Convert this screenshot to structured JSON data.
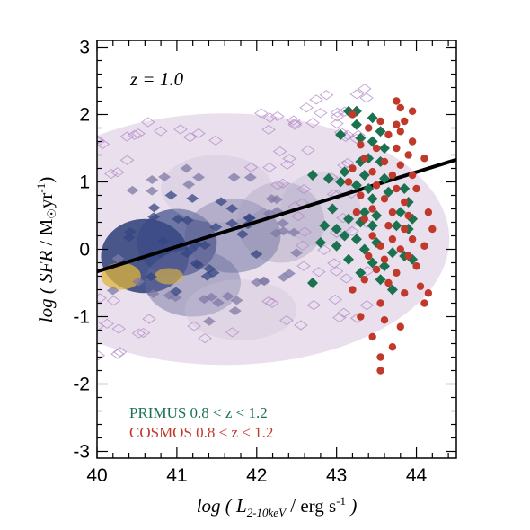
{
  "chart_data": {
    "type": "scatter",
    "annotation": "z = 1.0",
    "xlabel": {
      "pre": "log ( ",
      "var": "L",
      "sub": "2-10keV",
      "post": " / erg s",
      "sup": "-1",
      "close": " )"
    },
    "ylabel": {
      "pre": "log ( ",
      "var": "SFR",
      "mid": " / M",
      "sun": "☉",
      "post": "yr",
      "sup": "-1",
      "close": ")"
    },
    "xlim": [
      40,
      44.5
    ],
    "ylim": [
      -3.1,
      3.1
    ],
    "x_ticks": [
      "40",
      "41",
      "42",
      "43",
      "44"
    ],
    "y_ticks": [
      "3",
      "2",
      "1",
      "0",
      "-1",
      "-2",
      "-3"
    ],
    "fit_line": {
      "x": [
        40,
        44.5
      ],
      "y": [
        -0.33,
        1.33
      ],
      "color": "#000000"
    },
    "legend": [
      {
        "label": "PRIMUS 0.8 < z < 1.2",
        "color": "#1a7250"
      },
      {
        "label": "COSMOS 0.8 < z < 1.2",
        "color": "#c0392b"
      }
    ],
    "series": [
      {
        "name": "PRIMUS 0.8 < z < 1.2",
        "marker": "diamond",
        "color": "#1a7250",
        "points": [
          [
            43.15,
            2.05
          ],
          [
            43.25,
            2.05
          ],
          [
            43.45,
            1.95
          ],
          [
            43.25,
            1.85
          ],
          [
            43.05,
            1.7
          ],
          [
            43.55,
            1.75
          ],
          [
            43.45,
            1.6
          ],
          [
            43.3,
            1.65
          ],
          [
            43.6,
            1.5
          ],
          [
            43.4,
            1.35
          ],
          [
            43.55,
            1.3
          ],
          [
            43.3,
            1.3
          ],
          [
            43.1,
            1.15
          ],
          [
            43.35,
            1.1
          ],
          [
            43.6,
            1.05
          ],
          [
            42.7,
            1.1
          ],
          [
            42.9,
            1.05
          ],
          [
            43.05,
            1.0
          ],
          [
            43.25,
            0.95
          ],
          [
            43.4,
            0.9
          ],
          [
            43.65,
            0.85
          ],
          [
            43.85,
            0.9
          ],
          [
            43.45,
            0.75
          ],
          [
            43.9,
            0.7
          ],
          [
            43.35,
            0.55
          ],
          [
            43.5,
            0.5
          ],
          [
            43.8,
            0.55
          ],
          [
            43.95,
            0.45
          ],
          [
            42.85,
            0.35
          ],
          [
            43.0,
            0.3
          ],
          [
            43.3,
            0.4
          ],
          [
            43.45,
            0.35
          ],
          [
            43.75,
            0.35
          ],
          [
            43.9,
            0.3
          ],
          [
            43.1,
            0.2
          ],
          [
            43.25,
            0.15
          ],
          [
            42.8,
            0.1
          ],
          [
            43.0,
            0.05
          ],
          [
            43.35,
            0.0
          ],
          [
            43.5,
            0.1
          ],
          [
            43.7,
            -0.05
          ],
          [
            43.85,
            -0.1
          ],
          [
            43.15,
            -0.15
          ],
          [
            43.45,
            -0.2
          ],
          [
            43.6,
            -0.25
          ],
          [
            43.95,
            -0.15
          ],
          [
            42.7,
            -0.5
          ],
          [
            43.3,
            -0.35
          ],
          [
            43.55,
            -0.45
          ],
          [
            43.7,
            -0.6
          ],
          [
            43.15,
            0.45
          ],
          [
            42.95,
            0.6
          ]
        ]
      },
      {
        "name": "COSMOS 0.8 < z < 1.2",
        "marker": "circle",
        "color": "#c0392b",
        "points": [
          [
            43.75,
            2.2
          ],
          [
            43.8,
            2.1
          ],
          [
            43.95,
            2.05
          ],
          [
            43.2,
            2.0
          ],
          [
            43.55,
            1.9
          ],
          [
            43.75,
            1.85
          ],
          [
            43.85,
            1.9
          ],
          [
            43.4,
            1.8
          ],
          [
            43.65,
            1.7
          ],
          [
            43.8,
            1.75
          ],
          [
            43.95,
            1.6
          ],
          [
            43.3,
            1.55
          ],
          [
            43.5,
            1.5
          ],
          [
            43.75,
            1.5
          ],
          [
            43.9,
            1.4
          ],
          [
            43.35,
            1.35
          ],
          [
            43.6,
            1.3
          ],
          [
            43.8,
            1.25
          ],
          [
            44.1,
            1.35
          ],
          [
            43.2,
            1.2
          ],
          [
            43.45,
            1.15
          ],
          [
            43.7,
            1.1
          ],
          [
            43.95,
            1.1
          ],
          [
            43.15,
            1.0
          ],
          [
            43.5,
            0.95
          ],
          [
            43.75,
            0.9
          ],
          [
            44.0,
            0.9
          ],
          [
            43.3,
            0.8
          ],
          [
            43.6,
            0.75
          ],
          [
            43.85,
            0.7
          ],
          [
            43.45,
            0.6
          ],
          [
            43.7,
            0.55
          ],
          [
            43.9,
            0.5
          ],
          [
            44.15,
            0.55
          ],
          [
            43.35,
            0.45
          ],
          [
            43.65,
            0.35
          ],
          [
            43.85,
            0.3
          ],
          [
            44.2,
            0.3
          ],
          [
            43.45,
            0.2
          ],
          [
            43.7,
            0.15
          ],
          [
            43.95,
            0.15
          ],
          [
            43.55,
            0.05
          ],
          [
            43.8,
            0.0
          ],
          [
            44.1,
            0.05
          ],
          [
            43.4,
            -0.1
          ],
          [
            43.6,
            -0.15
          ],
          [
            43.9,
            -0.1
          ],
          [
            43.5,
            -0.3
          ],
          [
            43.75,
            -0.35
          ],
          [
            44.0,
            -0.25
          ],
          [
            43.35,
            -0.45
          ],
          [
            43.65,
            -0.5
          ],
          [
            44.05,
            -0.55
          ],
          [
            43.2,
            -0.6
          ],
          [
            43.85,
            -0.65
          ],
          [
            44.1,
            -0.8
          ],
          [
            43.55,
            -0.8
          ],
          [
            43.3,
            -1.0
          ],
          [
            43.6,
            -1.05
          ],
          [
            43.8,
            -1.15
          ],
          [
            43.45,
            -1.3
          ],
          [
            43.7,
            -1.45
          ],
          [
            43.55,
            -1.6
          ],
          [
            43.55,
            -1.8
          ],
          [
            44.15,
            -0.65
          ],
          [
            43.25,
            0.55
          ]
        ]
      }
    ]
  }
}
